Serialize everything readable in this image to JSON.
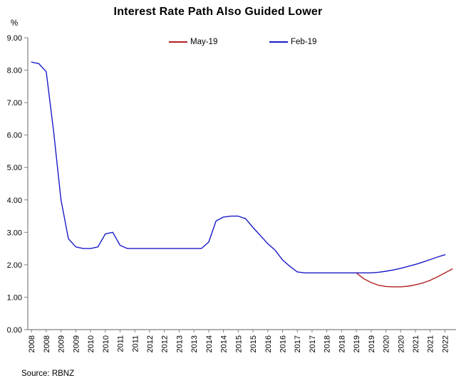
{
  "chart_data": {
    "type": "line",
    "title": "Interest Rate Path Also Guided Lower",
    "ylabel": "%",
    "xlabel": "",
    "source": "Source: RBNZ",
    "grid": false,
    "legend_position": "top",
    "axis_color": "#808080",
    "ylim": [
      0,
      9
    ],
    "y_tick_labels": [
      "0.00",
      "1.00",
      "2.00",
      "3.00",
      "4.00",
      "5.00",
      "6.00",
      "7.00",
      "8.00",
      "9.00"
    ],
    "categories": [
      "2008Q1",
      "2008Q2",
      "2008Q3",
      "2008Q4",
      "2009Q1",
      "2009Q2",
      "2009Q3",
      "2009Q4",
      "2010Q1",
      "2010Q2",
      "2010Q3",
      "2010Q4",
      "2011Q1",
      "2011Q2",
      "2011Q3",
      "2011Q4",
      "2012Q1",
      "2012Q2",
      "2012Q3",
      "2012Q4",
      "2013Q1",
      "2013Q2",
      "2013Q3",
      "2013Q4",
      "2014Q1",
      "2014Q2",
      "2014Q3",
      "2014Q4",
      "2015Q1",
      "2015Q2",
      "2015Q3",
      "2015Q4",
      "2016Q1",
      "2016Q2",
      "2016Q3",
      "2016Q4",
      "2017Q1",
      "2017Q2",
      "2017Q3",
      "2017Q4",
      "2018Q1",
      "2018Q2",
      "2018Q3",
      "2018Q4",
      "2019Q1",
      "2019Q2",
      "2019Q3",
      "2019Q4",
      "2020Q1",
      "2020Q2",
      "2020Q3",
      "2020Q4",
      "2021Q1",
      "2021Q2",
      "2021Q3",
      "2021Q4",
      "2022Q1",
      "2022Q2"
    ],
    "x_tick_every": 2,
    "x_tick_labels": [
      "2008",
      "2008",
      "2009",
      "2009",
      "2010",
      "2010",
      "2011",
      "2011",
      "2012",
      "2012",
      "2013",
      "2013",
      "2014",
      "2014",
      "2015",
      "2015",
      "2016",
      "2016",
      "2017",
      "2017",
      "2018",
      "2018",
      "2019",
      "2019",
      "2020",
      "2020",
      "2021",
      "2021",
      "2022"
    ],
    "series": [
      {
        "name": "May-19",
        "color": "#b02020",
        "start_index": 44,
        "values": [
          1.75,
          1.57,
          1.45,
          1.37,
          1.33,
          1.32,
          1.32,
          1.34,
          1.38,
          1.44,
          1.52,
          1.63,
          1.75,
          1.87
        ]
      },
      {
        "name": "Feb-19",
        "color": "#1a1ac8",
        "start_index": 0,
        "values": [
          8.25,
          8.2,
          7.95,
          6.1,
          4.0,
          2.8,
          2.55,
          2.5,
          2.5,
          2.55,
          2.95,
          3.0,
          2.6,
          2.5,
          2.5,
          2.5,
          2.5,
          2.5,
          2.5,
          2.5,
          2.5,
          2.5,
          2.5,
          2.5,
          2.7,
          3.35,
          3.47,
          3.5,
          3.5,
          3.42,
          3.15,
          2.9,
          2.65,
          2.45,
          2.15,
          1.95,
          1.78,
          1.75,
          1.75,
          1.75,
          1.75,
          1.75,
          1.75,
          1.75,
          1.75,
          1.75,
          1.75,
          1.77,
          1.8,
          1.84,
          1.89,
          1.95,
          2.01,
          2.08,
          2.16,
          2.24,
          2.31
        ]
      }
    ]
  }
}
